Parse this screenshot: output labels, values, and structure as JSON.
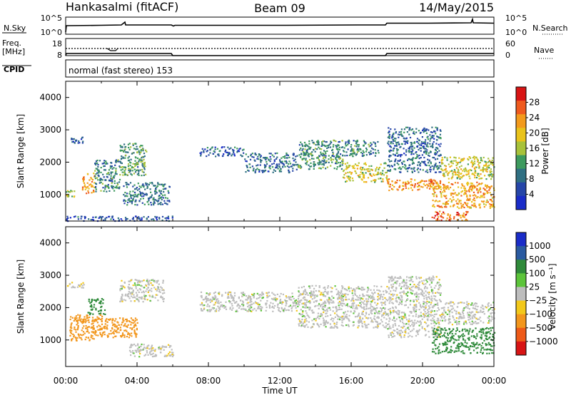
{
  "header": {
    "radar": "Hankasalmi (fitACF)",
    "beam": "Beam 09",
    "date": "14/May/2015"
  },
  "info_panels": {
    "nsky_label": "N.Sky",
    "nsearch_label": "N.Search",
    "log_ticks": [
      "10^5",
      "10^0"
    ],
    "freq_label_1": "Freq.",
    "freq_label_2": "[MHz]",
    "freq_ticks": [
      "18",
      "8"
    ],
    "nave_label": "Nave",
    "nave_ticks": [
      "60",
      "0"
    ],
    "cpid_label": "CPID",
    "cpid_text": "normal (fast stereo) 153"
  },
  "chart_data": [
    {
      "type": "heatmap",
      "title": "",
      "xlabel": "Time UT",
      "ylabel": "Slant Range [km]",
      "x_ticks": [
        "00:00",
        "04:00",
        "08:00",
        "12:00",
        "16:00",
        "20:00",
        "00:00"
      ],
      "xlim_hours": [
        0,
        24
      ],
      "y_ticks": [
        1000,
        2000,
        3000,
        4000
      ],
      "ylim": [
        180,
        4500
      ],
      "colorbar": {
        "label": "Power [dB]",
        "ticks": [
          4,
          8,
          12,
          16,
          20,
          24,
          28
        ],
        "range": [
          0,
          32
        ],
        "colors": [
          "#1a2cc8",
          "#2646a8",
          "#2f6f82",
          "#3d9a5e",
          "#a8c23a",
          "#e9c31b",
          "#f39a1c",
          "#ef5a1e",
          "#d81414"
        ]
      },
      "regions": [
        {
          "t_start": 0.0,
          "t_end": 1.0,
          "r_low": 2600,
          "r_high": 2800,
          "value": 6
        },
        {
          "t_start": 0.0,
          "t_end": 0.5,
          "r_low": 950,
          "r_high": 1150,
          "value": 16
        },
        {
          "t_start": 0.9,
          "t_end": 1.6,
          "r_low": 1050,
          "r_high": 1700,
          "value": 22
        },
        {
          "t_start": 1.6,
          "t_end": 3.0,
          "r_low": 1100,
          "r_high": 2100,
          "value": 10
        },
        {
          "t_start": 3.0,
          "t_end": 4.5,
          "r_low": 1600,
          "r_high": 2600,
          "value": 12
        },
        {
          "t_start": 3.2,
          "t_end": 5.8,
          "r_low": 700,
          "r_high": 1400,
          "value": 9
        },
        {
          "t_start": 0.0,
          "t_end": 6.0,
          "r_low": 200,
          "r_high": 350,
          "value": 6
        },
        {
          "t_start": 7.5,
          "t_end": 10.0,
          "r_low": 2200,
          "r_high": 2500,
          "value": 7
        },
        {
          "t_start": 10.0,
          "t_end": 13.0,
          "r_low": 1700,
          "r_high": 2300,
          "value": 8
        },
        {
          "t_start": 13.0,
          "t_end": 15.5,
          "r_low": 1800,
          "r_high": 2300,
          "value": 12
        },
        {
          "t_start": 15.5,
          "t_end": 18.0,
          "r_low": 1400,
          "r_high": 2000,
          "value": 18
        },
        {
          "t_start": 13.0,
          "t_end": 17.5,
          "r_low": 2200,
          "r_high": 2700,
          "value": 10
        },
        {
          "t_start": 18.0,
          "t_end": 21.0,
          "r_low": 1150,
          "r_high": 1500,
          "value": 24
        },
        {
          "t_start": 18.0,
          "t_end": 21.0,
          "r_low": 1700,
          "r_high": 3100,
          "value": 8
        },
        {
          "t_start": 20.5,
          "t_end": 24.0,
          "r_low": 600,
          "r_high": 1400,
          "value": 22
        },
        {
          "t_start": 21.0,
          "t_end": 24.0,
          "r_low": 1500,
          "r_high": 2200,
          "value": 18
        },
        {
          "t_start": 20.5,
          "t_end": 22.5,
          "r_low": 200,
          "r_high": 500,
          "value": 26
        }
      ]
    },
    {
      "type": "heatmap",
      "title": "",
      "xlabel": "Time UT",
      "ylabel": "Slant Range [km]",
      "x_ticks": [
        "00:00",
        "04:00",
        "08:00",
        "12:00",
        "16:00",
        "20:00",
        "00:00"
      ],
      "xlim_hours": [
        0,
        24
      ],
      "y_ticks": [
        1000,
        2000,
        3000,
        4000
      ],
      "ylim": [
        180,
        4500
      ],
      "colorbar": {
        "label": "Velocity [m s⁻¹]",
        "ticks": [
          "1000",
          "500",
          "100",
          "25",
          "−25",
          "−100",
          "−500",
          "−1000"
        ],
        "colors": [
          "#1a2cc8",
          "#2a5aa0",
          "#2f8a3a",
          "#5cc43a",
          "#bdbdbd",
          "#f2c81a",
          "#f2961c",
          "#ee5a18",
          "#d81414"
        ]
      },
      "regions": [
        {
          "t_start": 0.0,
          "t_end": 1.0,
          "r_low": 2600,
          "r_high": 2800,
          "value": -10
        },
        {
          "t_start": 0.2,
          "t_end": 2.0,
          "r_low": 1000,
          "r_high": 1800,
          "value": -200
        },
        {
          "t_start": 1.5,
          "t_end": 4.0,
          "r_low": 1100,
          "r_high": 1700,
          "value": -150
        },
        {
          "t_start": 1.2,
          "t_end": 2.2,
          "r_low": 1800,
          "r_high": 2300,
          "value": 150
        },
        {
          "t_start": 3.0,
          "t_end": 5.5,
          "r_low": 2200,
          "r_high": 2900,
          "value": 0
        },
        {
          "t_start": 3.5,
          "t_end": 6.0,
          "r_low": 500,
          "r_high": 900,
          "value": 0
        },
        {
          "t_start": 7.5,
          "t_end": 13.0,
          "r_low": 1900,
          "r_high": 2500,
          "value": 0
        },
        {
          "t_start": 13.0,
          "t_end": 18.0,
          "r_low": 1400,
          "r_high": 2700,
          "value": 0
        },
        {
          "t_start": 18.0,
          "t_end": 21.0,
          "r_low": 1100,
          "r_high": 3000,
          "value": 0
        },
        {
          "t_start": 20.5,
          "t_end": 24.0,
          "r_low": 600,
          "r_high": 1400,
          "value": 150
        },
        {
          "t_start": 21.0,
          "t_end": 24.0,
          "r_low": 1500,
          "r_high": 2200,
          "value": 0
        }
      ]
    }
  ]
}
